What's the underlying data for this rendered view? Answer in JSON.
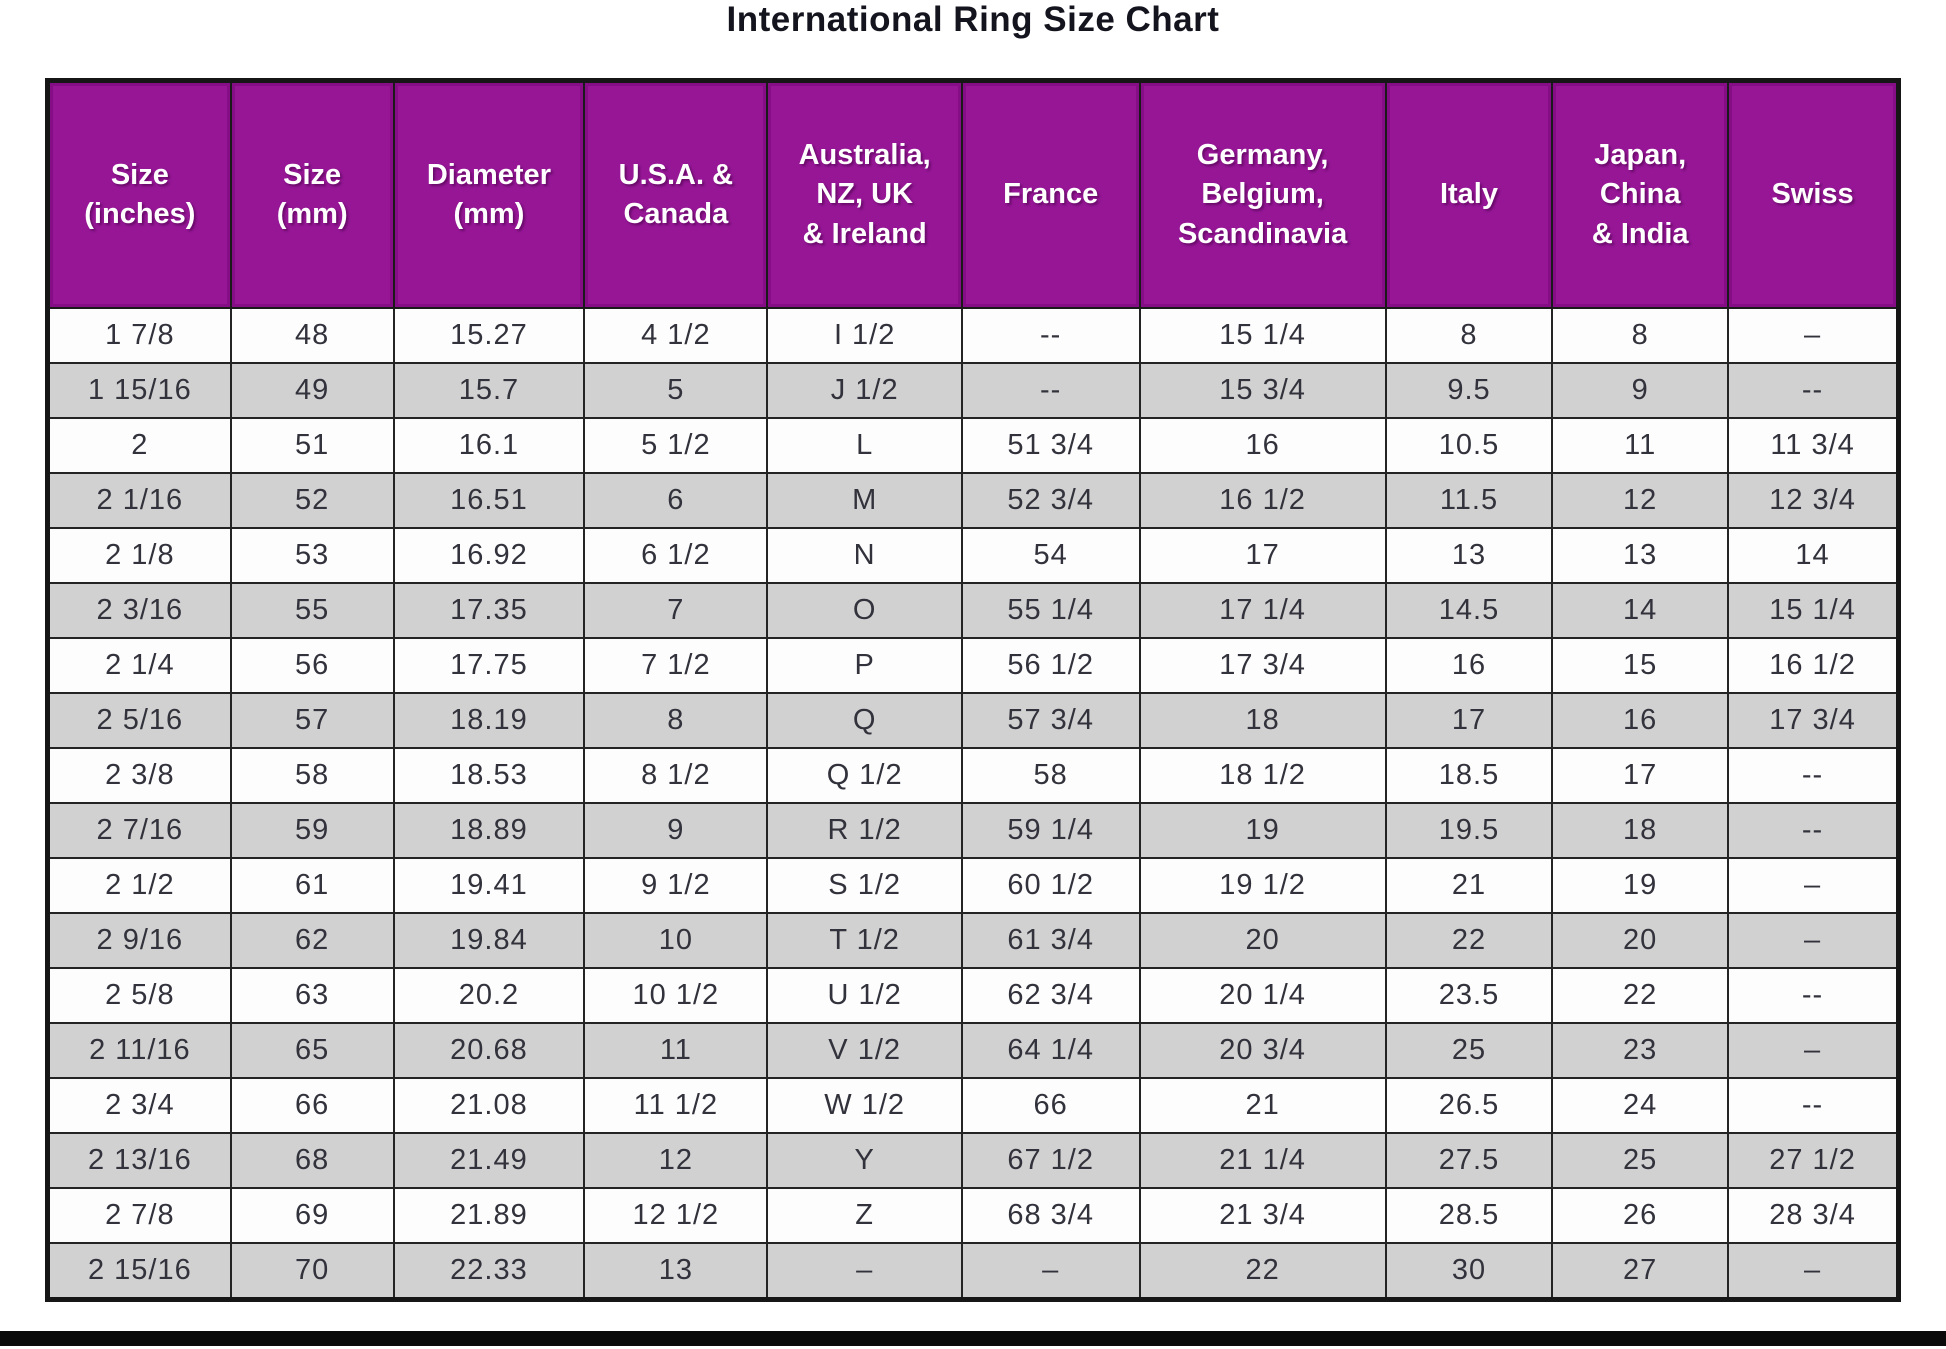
{
  "page": {
    "title": "International Ring Size Chart"
  },
  "chart_data": {
    "type": "table",
    "title": "International Ring Size Chart",
    "columns": [
      "Size\n(inches)",
      "Size\n(mm)",
      "Diameter\n(mm)",
      "U.S.A. &\nCanada",
      "Australia,\nNZ, UK\n& Ireland",
      "France",
      "Germany,\nBelgium,\nScandinavia",
      "Italy",
      "Japan,\nChina\n& India",
      "Swiss"
    ],
    "rows": [
      [
        "1 7/8",
        "48",
        "15.27",
        "4 1/2",
        "I 1/2",
        "--",
        "15 1/4",
        "8",
        "8",
        "–"
      ],
      [
        "1 15/16",
        "49",
        "15.7",
        "5",
        "J 1/2",
        "--",
        "15 3/4",
        "9.5",
        "9",
        "--"
      ],
      [
        "2",
        "51",
        "16.1",
        "5 1/2",
        "L",
        "51 3/4",
        "16",
        "10.5",
        "11",
        "11 3/4"
      ],
      [
        "2 1/16",
        "52",
        "16.51",
        "6",
        "M",
        "52 3/4",
        "16 1/2",
        "11.5",
        "12",
        "12 3/4"
      ],
      [
        "2 1/8",
        "53",
        "16.92",
        "6 1/2",
        "N",
        "54",
        "17",
        "13",
        "13",
        "14"
      ],
      [
        "2 3/16",
        "55",
        "17.35",
        "7",
        "O",
        "55 1/4",
        "17 1/4",
        "14.5",
        "14",
        "15 1/4"
      ],
      [
        "2 1/4",
        "56",
        "17.75",
        "7 1/2",
        "P",
        "56 1/2",
        "17 3/4",
        "16",
        "15",
        "16 1/2"
      ],
      [
        "2 5/16",
        "57",
        "18.19",
        "8",
        "Q",
        "57 3/4",
        "18",
        "17",
        "16",
        "17 3/4"
      ],
      [
        "2 3/8",
        "58",
        "18.53",
        "8 1/2",
        "Q 1/2",
        "58",
        "18 1/2",
        "18.5",
        "17",
        "--"
      ],
      [
        "2 7/16",
        "59",
        "18.89",
        "9",
        "R 1/2",
        "59 1/4",
        "19",
        "19.5",
        "18",
        "--"
      ],
      [
        "2 1/2",
        "61",
        "19.41",
        "9 1/2",
        "S 1/2",
        "60 1/2",
        "19 1/2",
        "21",
        "19",
        "–"
      ],
      [
        "2 9/16",
        "62",
        "19.84",
        "10",
        "T 1/2",
        "61 3/4",
        "20",
        "22",
        "20",
        "–"
      ],
      [
        "2 5/8",
        "63",
        "20.2",
        "10 1/2",
        "U 1/2",
        "62 3/4",
        "20 1/4",
        "23.5",
        "22",
        "--"
      ],
      [
        "2 11/16",
        "65",
        "20.68",
        "11",
        "V 1/2",
        "64 1/4",
        "20 3/4",
        "25",
        "23",
        "–"
      ],
      [
        "2 3/4",
        "66",
        "21.08",
        "11 1/2",
        "W 1/2",
        "66",
        "21",
        "26.5",
        "24",
        "--"
      ],
      [
        "2 13/16",
        "68",
        "21.49",
        "12",
        "Y",
        "67 1/2",
        "21 1/4",
        "27.5",
        "25",
        "27 1/2"
      ],
      [
        "2 7/8",
        "69",
        "21.89",
        "12 1/2",
        "Z",
        "68 3/4",
        "21 3/4",
        "28.5",
        "26",
        "28 3/4"
      ],
      [
        "2 15/16",
        "70",
        "22.33",
        "13",
        "–",
        "–",
        "22",
        "30",
        "27",
        "–"
      ]
    ],
    "colors": {
      "header_bg": "#961696",
      "header_text": "#ffffff",
      "row_bg": "#fdfdfd",
      "row_alt_bg": "#d1d1d1",
      "border": "#1c1c1c"
    },
    "layout_hints": {
      "grid": true,
      "striped": true,
      "header_position": "top"
    }
  }
}
